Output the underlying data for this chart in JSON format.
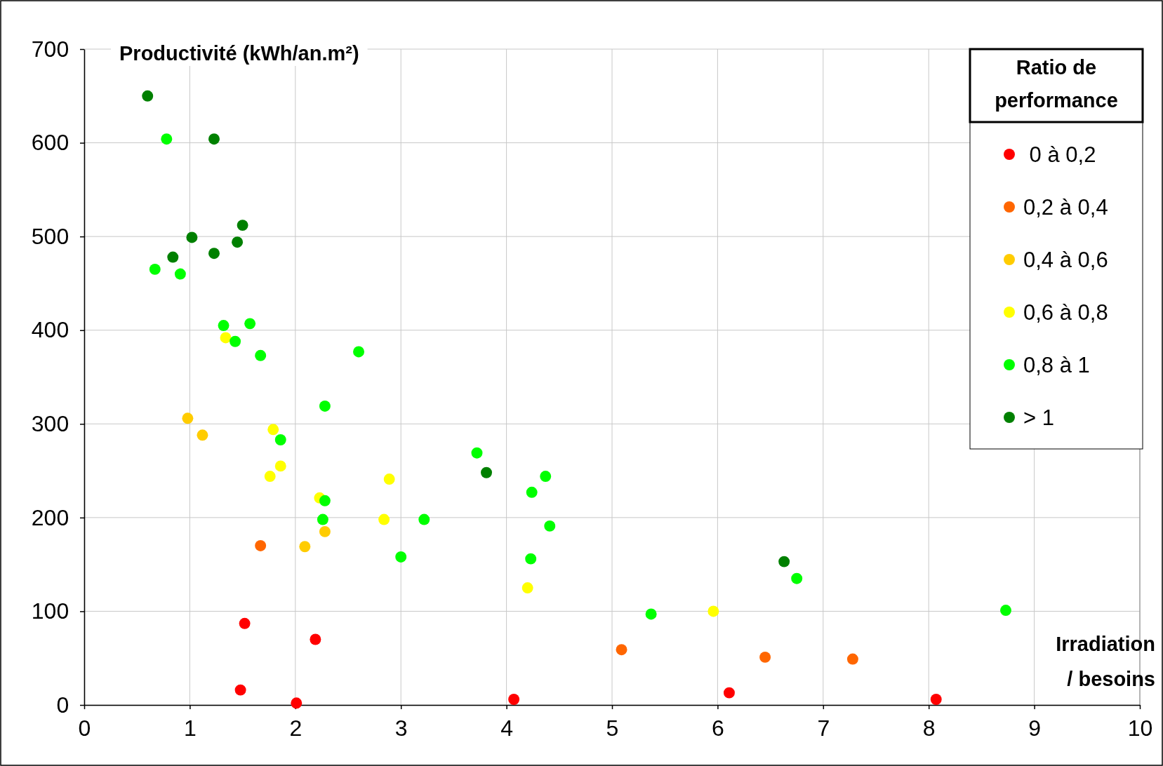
{
  "chart_data": {
    "type": "scatter",
    "ylabel": "Productivité (kWh/an.m²)",
    "xlabel": "Irradiation\n/ besoins",
    "legend_title": "Ratio de\nperformance",
    "xlim": [
      0,
      10
    ],
    "ylim": [
      0,
      700
    ],
    "xticks": [
      0,
      1,
      2,
      3,
      4,
      5,
      6,
      7,
      8,
      9,
      10
    ],
    "yticks": [
      0,
      100,
      200,
      300,
      400,
      500,
      600,
      700
    ],
    "grid": true,
    "legend": "top right",
    "marker": "circle",
    "series": [
      {
        "name": " 0 à 0,2",
        "color": "#ff0000",
        "x": [
          1.52,
          1.48,
          2.01,
          2.19,
          4.07,
          6.11,
          8.07
        ],
        "values": [
          87,
          16,
          2,
          70,
          6,
          13,
          6
        ]
      },
      {
        "name": "0,2 à 0,4",
        "color": "#ff6600",
        "x": [
          1.67,
          5.09,
          6.45,
          7.28
        ],
        "values": [
          170,
          59,
          51,
          49
        ]
      },
      {
        "name": "0,4 à 0,6",
        "color": "#ffcc00",
        "x": [
          0.98,
          1.12,
          2.09,
          2.28
        ],
        "values": [
          306,
          288,
          169,
          185
        ]
      },
      {
        "name": "0,6 à 0,8",
        "color": "#ffff00",
        "x": [
          1.34,
          1.79,
          1.76,
          1.86,
          2.23,
          2.89,
          2.84,
          4.2,
          5.96
        ],
        "values": [
          392,
          294,
          244,
          255,
          221,
          241,
          198,
          125,
          100
        ]
      },
      {
        "name": "0,8 à 1",
        "color": "#00ff00",
        "x": [
          0.78,
          0.67,
          0.91,
          1.32,
          1.43,
          1.57,
          1.67,
          1.86,
          2.28,
          2.28,
          2.26,
          2.6,
          3.0,
          3.22,
          3.72,
          4.24,
          4.37,
          4.23,
          4.41,
          5.37,
          6.75,
          8.73
        ],
        "values": [
          604,
          465,
          460,
          405,
          388,
          407,
          373,
          283,
          319,
          218,
          198,
          377,
          158,
          198,
          269,
          227,
          244,
          156,
          191,
          97,
          135,
          101
        ]
      },
      {
        "name": "> 1",
        "color": "#008000",
        "x": [
          0.6,
          1.23,
          1.5,
          1.02,
          0.84,
          1.45,
          1.23,
          3.81,
          6.63
        ],
        "values": [
          650,
          604,
          512,
          499,
          478,
          494,
          482,
          248,
          153
        ]
      }
    ]
  }
}
